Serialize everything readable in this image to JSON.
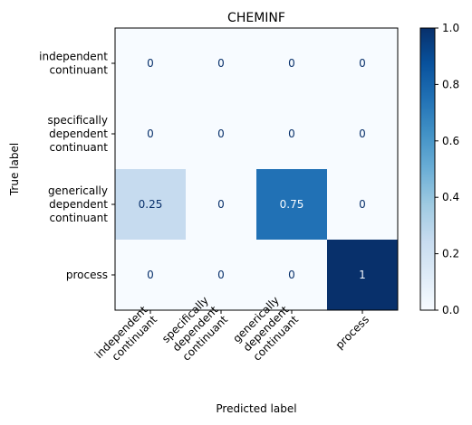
{
  "chart_data": {
    "type": "heatmap",
    "title": "CHEMINF",
    "xlabel": "Predicted label",
    "ylabel": "True label",
    "row_labels": [
      [
        "independent",
        "continuant"
      ],
      [
        "specifically",
        "dependent",
        "continuant"
      ],
      [
        "generically",
        "dependent",
        "continuant"
      ],
      [
        "process"
      ]
    ],
    "col_labels": [
      [
        "independent",
        "continuant"
      ],
      [
        "specifically",
        "dependent",
        "continuant"
      ],
      [
        "generically",
        "dependent",
        "continuant"
      ],
      [
        "process"
      ]
    ],
    "values": [
      [
        0,
        0,
        0,
        0
      ],
      [
        0,
        0,
        0,
        0
      ],
      [
        0.25,
        0,
        0.75,
        0
      ],
      [
        0,
        0,
        0,
        1
      ]
    ],
    "value_labels": [
      [
        "0",
        "0",
        "0",
        "0"
      ],
      [
        "0",
        "0",
        "0",
        "0"
      ],
      [
        "0.25",
        "0",
        "0.75",
        "0"
      ],
      [
        "0",
        "0",
        "0",
        "1"
      ]
    ],
    "colormap": "Blues",
    "colorbar": {
      "range": [
        0,
        1
      ],
      "ticks": [
        0,
        0.2,
        0.4,
        0.6,
        0.8,
        1
      ],
      "tick_labels": [
        "0.0",
        "0.2",
        "0.4",
        "0.6",
        "0.8",
        "1.0"
      ]
    },
    "grid": false
  }
}
